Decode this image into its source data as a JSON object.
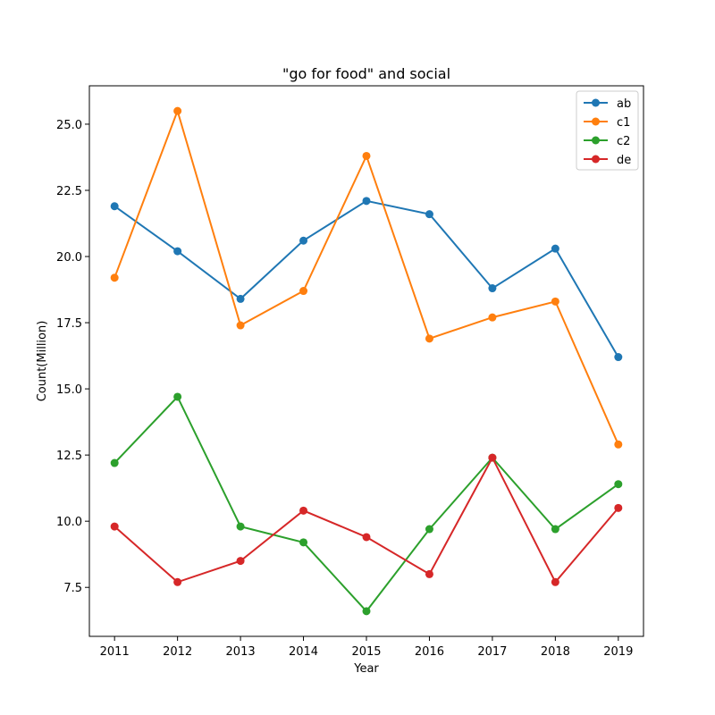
{
  "chart_data": {
    "type": "line",
    "title": "\"go for food\" and social",
    "xlabel": "Year",
    "ylabel": "Count(Million)",
    "x": [
      2011,
      2012,
      2013,
      2014,
      2015,
      2016,
      2017,
      2018,
      2019
    ],
    "xlim": [
      2010.6,
      2019.4
    ],
    "ylim": [
      5.65,
      26.45
    ],
    "yticks": [
      "7.5",
      "10.0",
      "12.5",
      "15.0",
      "17.5",
      "20.0",
      "22.5",
      "25.0"
    ],
    "grid": false,
    "legend_position": "top-right",
    "markers": "circle",
    "series": [
      {
        "name": "ab",
        "color": "#1f77b4",
        "values": [
          21.9,
          20.2,
          18.4,
          20.6,
          22.1,
          21.6,
          18.8,
          20.3,
          16.2
        ]
      },
      {
        "name": "c1",
        "color": "#ff7f0e",
        "values": [
          19.2,
          25.5,
          17.4,
          18.7,
          23.8,
          16.9,
          17.7,
          18.3,
          12.9
        ]
      },
      {
        "name": "c2",
        "color": "#2ca02c",
        "values": [
          12.2,
          14.7,
          9.8,
          9.2,
          6.6,
          9.7,
          12.4,
          9.7,
          11.4
        ]
      },
      {
        "name": "de",
        "color": "#d62728",
        "values": [
          9.8,
          7.7,
          8.5,
          10.4,
          9.4,
          8.0,
          12.4,
          7.7,
          10.5
        ]
      }
    ]
  }
}
